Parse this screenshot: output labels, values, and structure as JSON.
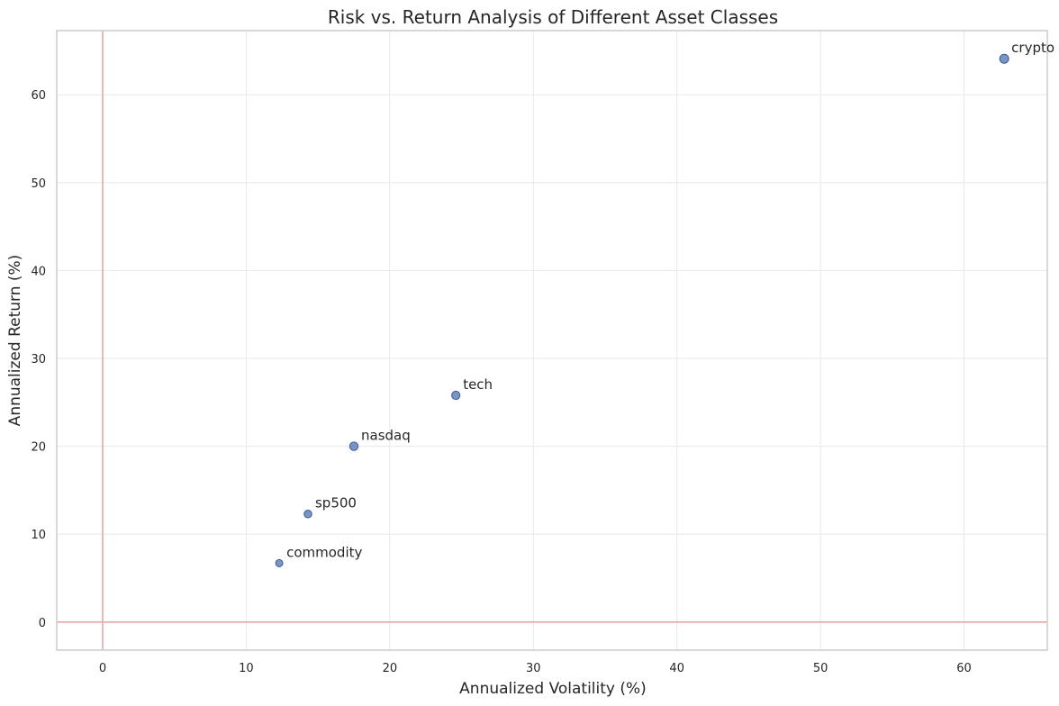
{
  "chart_data": {
    "type": "scatter",
    "title": "Risk vs. Return Analysis of Different Asset Classes",
    "xlabel": "Annualized Volatility (%)",
    "ylabel": "Annualized Return (%)",
    "xlim": [
      -3.2,
      65.8
    ],
    "ylim": [
      -3.2,
      67.3
    ],
    "xticks": [
      0,
      10,
      20,
      30,
      40,
      50,
      60
    ],
    "yticks": [
      0,
      10,
      20,
      30,
      40,
      50,
      60
    ],
    "grid": true,
    "reference_lines": {
      "x": 0,
      "y": 0,
      "color": "#e3a8a8"
    },
    "point_color": "#4c72b0",
    "points": [
      {
        "label": "crypto",
        "x": 62.8,
        "y": 64.1,
        "size": 3.3
      },
      {
        "label": "tech",
        "x": 24.6,
        "y": 25.8,
        "size": 2.6
      },
      {
        "label": "nasdaq",
        "x": 17.5,
        "y": 20.0,
        "size": 2.8
      },
      {
        "label": "sp500",
        "x": 14.3,
        "y": 12.3,
        "size": 2.1
      },
      {
        "label": "commodity",
        "x": 12.3,
        "y": 6.7,
        "size": 1.6
      }
    ]
  }
}
